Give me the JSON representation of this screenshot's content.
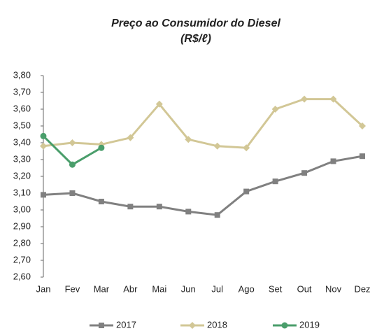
{
  "chart_data": {
    "type": "line",
    "title": "Preço ao Consumidor do Diesel",
    "subtitle": "(R$/ℓ)",
    "categories": [
      "Jan",
      "Fev",
      "Mar",
      "Abr",
      "Mai",
      "Jun",
      "Jul",
      "Ago",
      "Set",
      "Out",
      "Nov",
      "Dez"
    ],
    "series": [
      {
        "name": "2017",
        "color": "#808080",
        "marker": "square",
        "values": [
          3.09,
          3.1,
          3.05,
          3.02,
          3.02,
          2.99,
          2.97,
          3.11,
          3.17,
          3.22,
          3.29,
          3.32
        ]
      },
      {
        "name": "2018",
        "color": "#d2c796",
        "marker": "diamond",
        "values": [
          3.38,
          3.4,
          3.39,
          3.43,
          3.63,
          3.42,
          3.38,
          3.37,
          3.6,
          3.66,
          3.66,
          3.5
        ]
      },
      {
        "name": "2019",
        "color": "#4a9e6b",
        "marker": "circle",
        "values": [
          3.44,
          3.27,
          3.37,
          null,
          null,
          null,
          null,
          null,
          null,
          null,
          null,
          null
        ]
      }
    ],
    "ylim": [
      2.6,
      3.8
    ],
    "yticks": [
      {
        "value": 2.6,
        "label": "2,60"
      },
      {
        "value": 2.7,
        "label": "2,70"
      },
      {
        "value": 2.8,
        "label": "2,80"
      },
      {
        "value": 2.9,
        "label": "2,90"
      },
      {
        "value": 3.0,
        "label": "3,00"
      },
      {
        "value": 3.1,
        "label": "3,10"
      },
      {
        "value": 3.2,
        "label": "3,20"
      },
      {
        "value": 3.3,
        "label": "3,30"
      },
      {
        "value": 3.4,
        "label": "3,40"
      },
      {
        "value": 3.5,
        "label": "3,50"
      },
      {
        "value": 3.6,
        "label": "3,60"
      },
      {
        "value": 3.7,
        "label": "3,70"
      },
      {
        "value": 3.8,
        "label": "3,80"
      }
    ],
    "grid": false,
    "legend": "bottom"
  }
}
